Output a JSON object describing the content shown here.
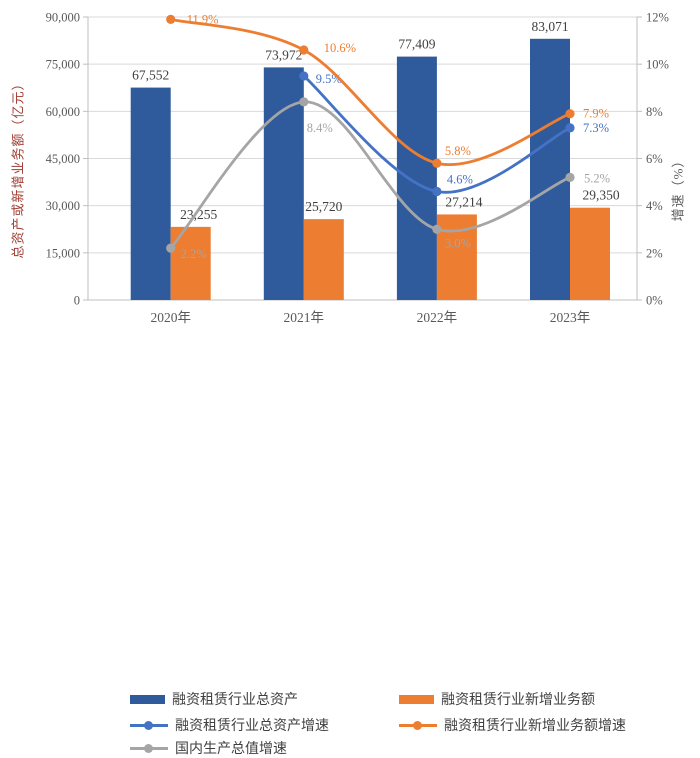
{
  "chart_data": {
    "type": "combo-bar-line",
    "categories": [
      "2020年",
      "2021年",
      "2022年",
      "2023年"
    ],
    "left_axis": {
      "title": "总资产或新增业务额（亿元）",
      "title_color": "#A03C32",
      "min": 0,
      "max": 90000,
      "step": 15000,
      "tick_labels": [
        "0",
        "15,000",
        "30,000",
        "45,000",
        "60,000",
        "75,000",
        "90,000"
      ]
    },
    "right_axis": {
      "title": "增速（%）",
      "title_color": "#595959",
      "min": 0,
      "max": 12,
      "step": 2,
      "tick_labels": [
        "0%",
        "2%",
        "4%",
        "6%",
        "8%",
        "10%",
        "12%"
      ]
    },
    "grid": "horizontal",
    "tick_label_color": "#595959",
    "bar_label_color": "#404040",
    "series": [
      {
        "name": "融资租赁行业总资产",
        "type": "bar",
        "axis": "left",
        "color": "#2F5B9D",
        "values": [
          67552,
          73972,
          77409,
          83071
        ],
        "labels": [
          "67,552",
          "73,972",
          "77,409",
          "83,071"
        ]
      },
      {
        "name": "融资租赁行业新增业务额",
        "type": "bar",
        "axis": "left",
        "color": "#ED7D31",
        "values": [
          23255,
          25720,
          27214,
          29350
        ],
        "labels": [
          "23,255",
          "25,720",
          "27,214",
          "29,350"
        ]
      },
      {
        "name": "融资租赁行业总资产增速",
        "type": "line",
        "axis": "right",
        "color": "#4472C4",
        "values": [
          null,
          9.5,
          4.6,
          7.3
        ],
        "labels": [
          null,
          "9.5%",
          "4.6%",
          "7.3%"
        ]
      },
      {
        "name": "融资租赁行业新增业务额增速",
        "type": "line",
        "axis": "right",
        "color": "#ED7D31",
        "values": [
          11.9,
          10.6,
          5.8,
          7.9
        ],
        "labels": [
          "11.9%",
          "10.6%",
          "5.8%",
          "7.9%"
        ]
      },
      {
        "name": "国内生产总值增速",
        "type": "line",
        "axis": "right",
        "color": "#A5A5A5",
        "values": [
          2.2,
          8.4,
          3.0,
          5.2
        ],
        "labels": [
          "2.2%",
          "8.4%",
          "3.0%",
          "5.2%"
        ]
      }
    ],
    "legend": {
      "position": "bottom",
      "columns": 2,
      "items": [
        {
          "series": 0,
          "col": 0,
          "row": 0
        },
        {
          "series": 1,
          "col": 1,
          "row": 0
        },
        {
          "series": 2,
          "col": 0,
          "row": 1
        },
        {
          "series": 3,
          "col": 1,
          "row": 1
        },
        {
          "series": 4,
          "col": 0,
          "row": 2
        }
      ]
    }
  }
}
